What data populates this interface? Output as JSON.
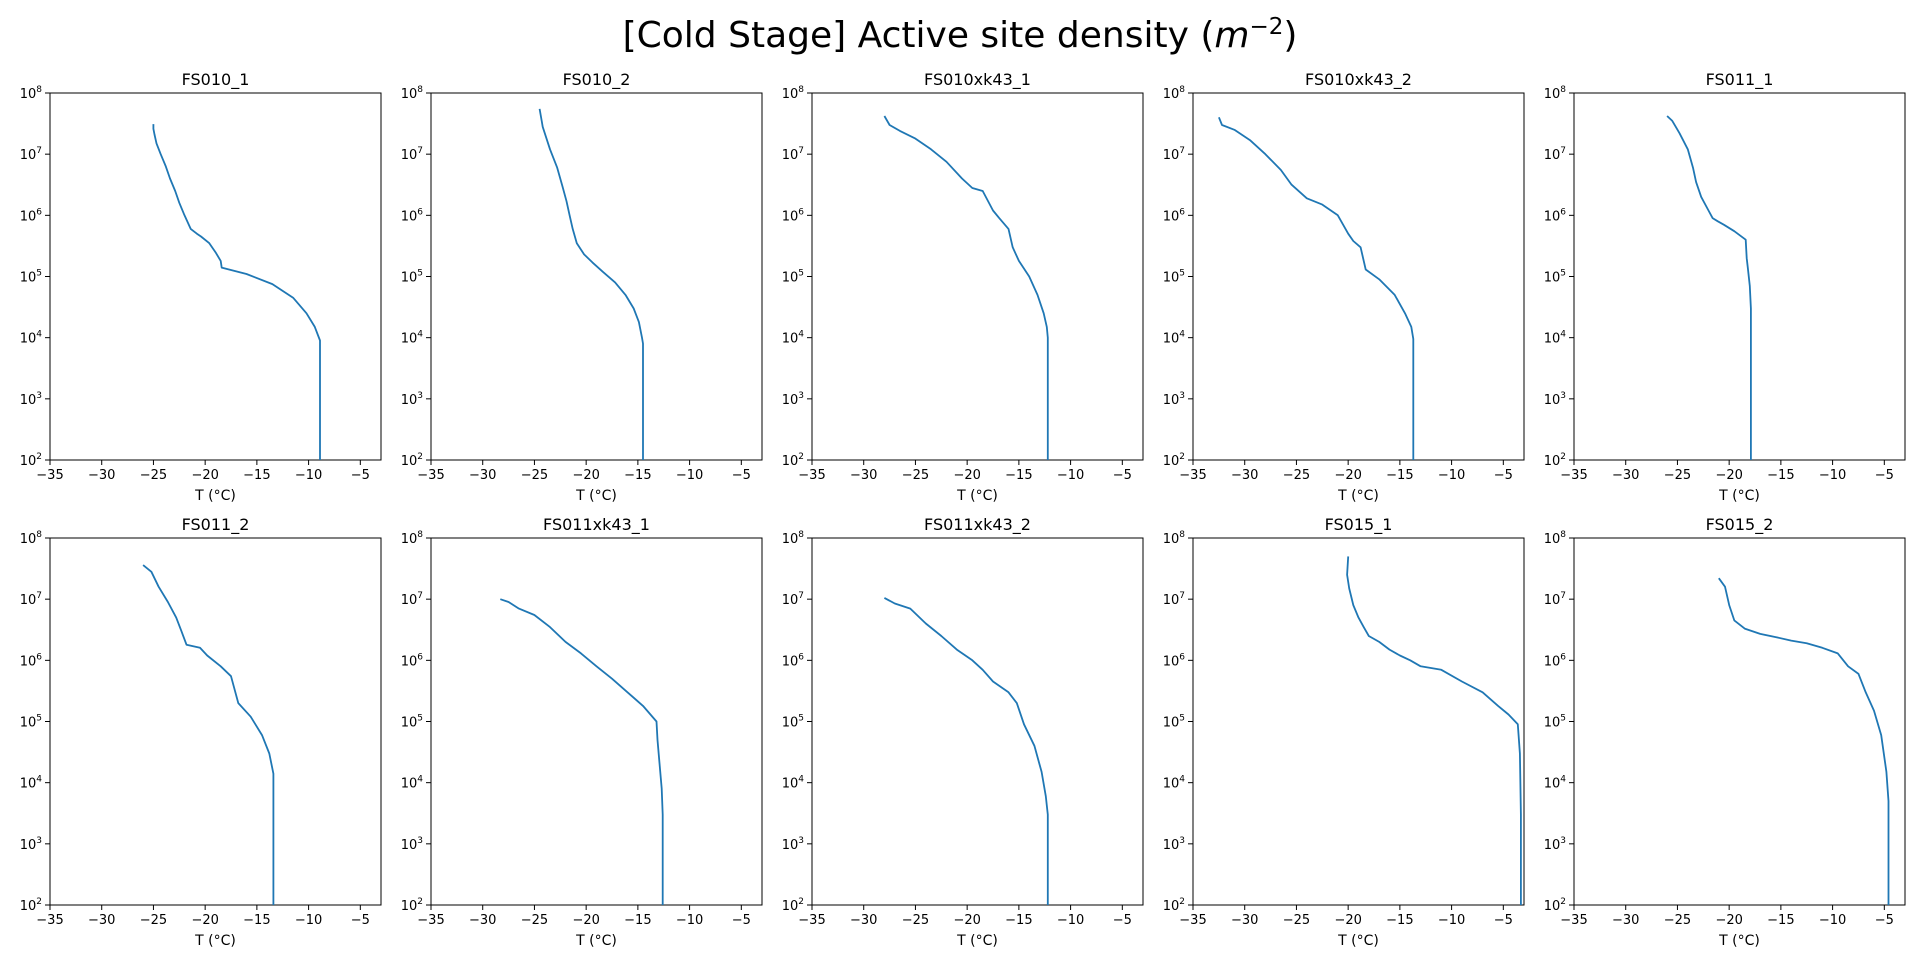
{
  "figure": {
    "title_main": "[Cold Stage] Active site density (",
    "title_unit": "m",
    "title_exp": "−2",
    "title_close": ")",
    "line_color": "#1f77b4"
  },
  "chart_data": [
    {
      "type": "line",
      "title": "FS010_1",
      "xlabel": "T (°C)",
      "xlim": [
        -35,
        -3
      ],
      "ylim": [
        100,
        100000000
      ],
      "yscale": "log",
      "xticks": [
        -35,
        -30,
        -25,
        -20,
        -15,
        -10,
        -5
      ],
      "yticks": [
        100,
        1000,
        10000,
        100000,
        1000000,
        10000000,
        100000000
      ],
      "x": [
        -25.0,
        -25.0,
        -24.9,
        -24.7,
        -24.3,
        -23.8,
        -23.4,
        -22.9,
        -22.5,
        -22.0,
        -21.4,
        -20.8,
        -20.4,
        -19.6,
        -19.0,
        -18.5,
        -18.4,
        -16.0,
        -13.5,
        -11.5,
        -10.2,
        -9.4,
        -8.9,
        -8.9,
        -8.9
      ],
      "y": [
        31000000,
        26000000,
        21000000,
        15000000,
        10000000,
        6300000,
        4000000,
        2500000,
        1600000,
        1000000,
        600000,
        500000,
        450000,
        350000,
        250000,
        180000,
        140000,
        110000,
        75000,
        45000,
        25000,
        15000,
        9000,
        1000,
        100
      ]
    },
    {
      "type": "line",
      "title": "FS010_2",
      "xlabel": "T (°C)",
      "xlim": [
        -35,
        -3
      ],
      "ylim": [
        100,
        100000000
      ],
      "yscale": "log",
      "xticks": [
        -35,
        -30,
        -25,
        -20,
        -15,
        -10,
        -5
      ],
      "yticks": [
        100,
        1000,
        10000,
        100000,
        1000000,
        10000000,
        100000000
      ],
      "x": [
        -24.5,
        -24.3,
        -24.2,
        -23.5,
        -22.8,
        -22.3,
        -21.9,
        -21.6,
        -21.3,
        -20.9,
        -20.2,
        -19.4,
        -18.4,
        -17.2,
        -16.2,
        -15.4,
        -14.9,
        -14.6,
        -14.5,
        -14.5,
        -14.5
      ],
      "y": [
        55000000,
        35000000,
        28000000,
        12000000,
        6000000,
        3000000,
        1700000,
        1000000,
        600000,
        350000,
        230000,
        170000,
        120000,
        80000,
        50000,
        30000,
        18000,
        10000,
        8000,
        1000,
        100
      ]
    },
    {
      "type": "line",
      "title": "FS010xk43_1",
      "xlabel": "T (°C)",
      "xlim": [
        -35,
        -3
      ],
      "ylim": [
        100,
        100000000
      ],
      "yscale": "log",
      "xticks": [
        -35,
        -30,
        -25,
        -20,
        -15,
        -10,
        -5
      ],
      "yticks": [
        100,
        1000,
        10000,
        100000,
        1000000,
        10000000,
        100000000
      ],
      "x": [
        -28.0,
        -27.5,
        -26.5,
        -25.0,
        -23.5,
        -22.0,
        -20.5,
        -19.5,
        -18.5,
        -17.5,
        -16.9,
        -16.0,
        -15.6,
        -15.0,
        -14.0,
        -13.2,
        -12.6,
        -12.3,
        -12.2,
        -12.2,
        -12.2
      ],
      "y": [
        42000000,
        30000000,
        24000000,
        18000000,
        12000000,
        7500000,
        4000000,
        2800000,
        2500000,
        1200000,
        900000,
        600000,
        300000,
        180000,
        100000,
        50000,
        25000,
        15000,
        10000,
        1000,
        100
      ]
    },
    {
      "type": "line",
      "title": "FS010xk43_2",
      "xlabel": "T (°C)",
      "xlim": [
        -35,
        -3
      ],
      "ylim": [
        100,
        100000000
      ],
      "yscale": "log",
      "xticks": [
        -35,
        -30,
        -25,
        -20,
        -15,
        -10,
        -5
      ],
      "yticks": [
        100,
        1000,
        10000,
        100000,
        1000000,
        10000000,
        100000000
      ],
      "x": [
        -32.5,
        -32.2,
        -31.0,
        -29.5,
        -28.0,
        -26.5,
        -25.5,
        -24.0,
        -22.5,
        -21.0,
        -20.0,
        -19.5,
        -18.8,
        -18.3,
        -17.0,
        -15.5,
        -14.5,
        -13.9,
        -13.7,
        -13.7,
        -13.7
      ],
      "y": [
        40000000,
        30000000,
        25000000,
        17000000,
        10000000,
        5500000,
        3200000,
        1900000,
        1500000,
        1000000,
        500000,
        380000,
        300000,
        130000,
        90000,
        50000,
        25000,
        15000,
        9500,
        1000,
        100
      ]
    },
    {
      "type": "line",
      "title": "FS011_1",
      "xlabel": "T (°C)",
      "xlim": [
        -35,
        -3
      ],
      "ylim": [
        100,
        100000000
      ],
      "yscale": "log",
      "xticks": [
        -35,
        -30,
        -25,
        -20,
        -15,
        -10,
        -5
      ],
      "yticks": [
        100,
        1000,
        10000,
        100000,
        1000000,
        10000000,
        100000000
      ],
      "x": [
        -26.0,
        -25.5,
        -24.8,
        -24.0,
        -23.5,
        -23.2,
        -22.7,
        -22.0,
        -21.6,
        -21.1,
        -20.5,
        -19.5,
        -18.4,
        -18.3,
        -18.2,
        -18.0,
        -17.9,
        -17.9,
        -17.9,
        -17.9
      ],
      "y": [
        42000000,
        35000000,
        22000000,
        12000000,
        6000000,
        3500000,
        2000000,
        1200000,
        900000,
        800000,
        700000,
        550000,
        400000,
        200000,
        140000,
        70000,
        30000,
        15000,
        1000,
        100
      ]
    },
    {
      "type": "line",
      "title": "FS011_2",
      "xlabel": "T (°C)",
      "xlim": [
        -35,
        -3
      ],
      "ylim": [
        100,
        100000000
      ],
      "yscale": "log",
      "xticks": [
        -35,
        -30,
        -25,
        -20,
        -15,
        -10,
        -5
      ],
      "yticks": [
        100,
        1000,
        10000,
        100000,
        1000000,
        10000000,
        100000000
      ],
      "x": [
        -26.0,
        -25.2,
        -24.5,
        -23.6,
        -22.8,
        -22.3,
        -21.8,
        -20.5,
        -19.8,
        -18.5,
        -17.5,
        -16.8,
        -15.6,
        -14.5,
        -13.8,
        -13.4,
        -13.4,
        -13.4
      ],
      "y": [
        36000000,
        28000000,
        16000000,
        9000000,
        5000000,
        3000000,
        1800000,
        1600000,
        1200000,
        800000,
        550000,
        200000,
        120000,
        60000,
        30000,
        14000,
        1000,
        100
      ]
    },
    {
      "type": "line",
      "title": "FS011xk43_1",
      "xlabel": "T (°C)",
      "xlim": [
        -35,
        -3
      ],
      "ylim": [
        100,
        100000000
      ],
      "yscale": "log",
      "xticks": [
        -35,
        -30,
        -25,
        -20,
        -15,
        -10,
        -5
      ],
      "yticks": [
        100,
        1000,
        10000,
        100000,
        1000000,
        10000000,
        100000000
      ],
      "x": [
        -28.3,
        -27.5,
        -26.5,
        -25.0,
        -23.5,
        -22.0,
        -20.5,
        -19.0,
        -17.5,
        -16.0,
        -14.5,
        -13.2,
        -13.1,
        -12.9,
        -12.7,
        -12.6,
        -12.6,
        -12.6
      ],
      "y": [
        10000000,
        9000000,
        7000000,
        5500000,
        3500000,
        2000000,
        1300000,
        800000,
        500000,
        300000,
        180000,
        100000,
        50000,
        20000,
        8000,
        3000,
        1000,
        100
      ]
    },
    {
      "type": "line",
      "title": "FS011xk43_2",
      "xlabel": "T (°C)",
      "xlim": [
        -35,
        -3
      ],
      "ylim": [
        100,
        100000000
      ],
      "yscale": "log",
      "xticks": [
        -35,
        -30,
        -25,
        -20,
        -15,
        -10,
        -5
      ],
      "yticks": [
        100,
        1000,
        10000,
        100000,
        1000000,
        10000000,
        100000000
      ],
      "x": [
        -28.0,
        -27.0,
        -25.5,
        -24.0,
        -22.5,
        -21.0,
        -19.5,
        -18.5,
        -17.5,
        -16.0,
        -15.2,
        -14.5,
        -13.5,
        -12.8,
        -12.4,
        -12.2,
        -12.2,
        -12.2
      ],
      "y": [
        10500000,
        8500000,
        7000000,
        4000000,
        2500000,
        1500000,
        1000000,
        700000,
        450000,
        300000,
        200000,
        90000,
        40000,
        15000,
        6000,
        3000,
        1000,
        100
      ]
    },
    {
      "type": "line",
      "title": "FS015_1",
      "xlabel": "T (°C)",
      "xlim": [
        -35,
        -3
      ],
      "ylim": [
        100,
        100000000
      ],
      "yscale": "log",
      "xticks": [
        -35,
        -30,
        -25,
        -20,
        -15,
        -10,
        -5
      ],
      "yticks": [
        100,
        1000,
        10000,
        100000,
        1000000,
        10000000,
        100000000
      ],
      "x": [
        -20.0,
        -20.1,
        -19.9,
        -19.5,
        -19.0,
        -18.5,
        -18.0,
        -17.0,
        -16.0,
        -15.0,
        -14.0,
        -13.0,
        -11.0,
        -9.0,
        -7.0,
        -5.5,
        -4.5,
        -3.6,
        -3.4,
        -3.3,
        -3.3,
        -3.3
      ],
      "y": [
        50000000,
        25000000,
        15000000,
        8000000,
        5000000,
        3500000,
        2500000,
        2000000,
        1500000,
        1200000,
        1000000,
        800000,
        700000,
        450000,
        300000,
        180000,
        130000,
        90000,
        30000,
        3000,
        1000,
        100
      ]
    },
    {
      "type": "line",
      "title": "FS015_2",
      "xlabel": "T (°C)",
      "xlim": [
        -35,
        -3
      ],
      "ylim": [
        100,
        100000000
      ],
      "yscale": "log",
      "xticks": [
        -35,
        -30,
        -25,
        -20,
        -15,
        -10,
        -5
      ],
      "yticks": [
        100,
        1000,
        10000,
        100000,
        1000000,
        10000000,
        100000000
      ],
      "x": [
        -21.0,
        -20.4,
        -20.0,
        -19.5,
        -18.5,
        -17.0,
        -15.5,
        -14.0,
        -12.5,
        -11.0,
        -9.5,
        -8.5,
        -7.5,
        -6.8,
        -6.0,
        -5.3,
        -4.8,
        -4.6,
        -4.6,
        -4.6
      ],
      "y": [
        22000000,
        16000000,
        8000000,
        4500000,
        3300000,
        2700000,
        2400000,
        2100000,
        1900000,
        1600000,
        1300000,
        800000,
        600000,
        300000,
        150000,
        60000,
        15000,
        5000,
        1000,
        100
      ]
    }
  ]
}
